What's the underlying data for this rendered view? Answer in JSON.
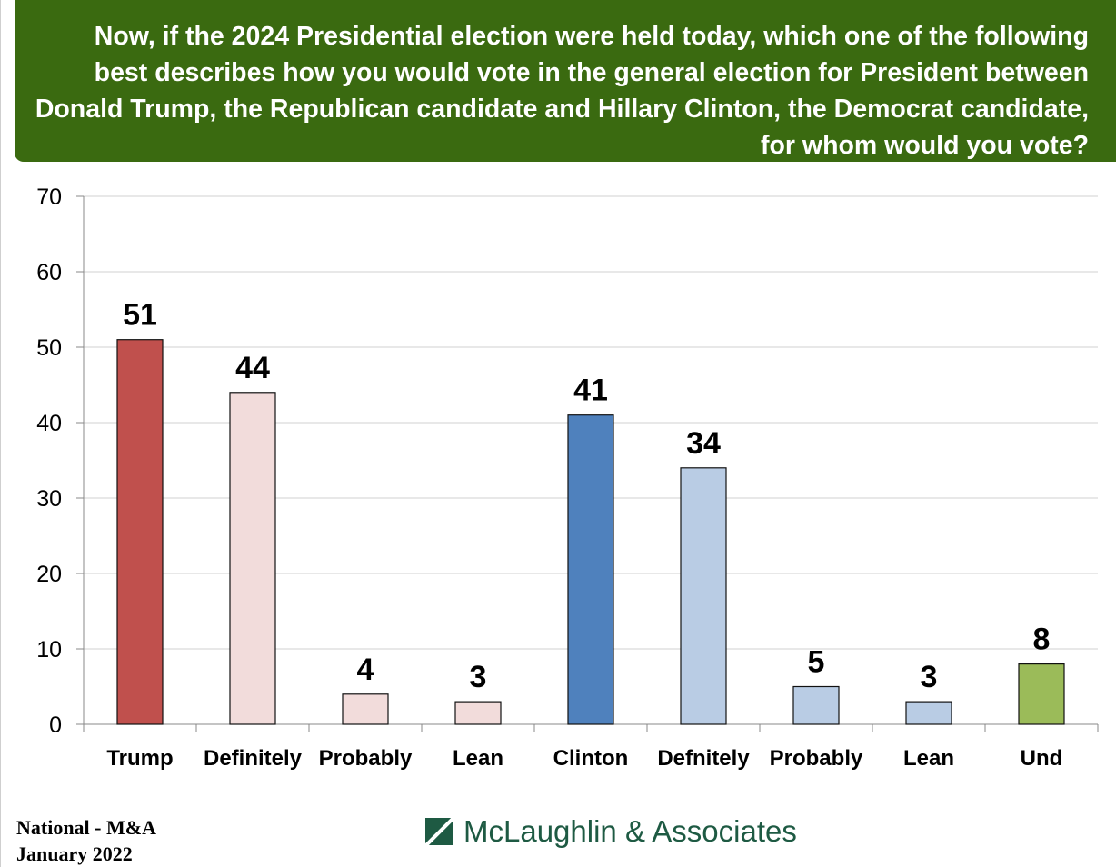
{
  "header": {
    "question": "Now, if the 2024 Presidential election were held today, which one of the following best describes how you would vote in the general election for President between Donald Trump, the Republican candidate and Hillary Clinton, the Democrat candidate, for whom would you vote?"
  },
  "chart_data": {
    "type": "bar",
    "title": "",
    "xlabel": "",
    "ylabel": "",
    "ylim": [
      0,
      70
    ],
    "yticks": [
      0,
      10,
      20,
      30,
      40,
      50,
      60,
      70
    ],
    "grid": true,
    "categories": [
      "Trump",
      "Definitely",
      "Probably",
      "Lean",
      "Clinton",
      "Defnitely",
      "Probably",
      "Lean",
      "Und"
    ],
    "values": [
      51,
      44,
      4,
      3,
      41,
      34,
      5,
      3,
      8
    ],
    "data_labels": [
      "51",
      "44",
      "4",
      "3",
      "41",
      "34",
      "5",
      "3",
      "8"
    ],
    "colors": [
      "#c0504d",
      "#f2dcdb",
      "#f2dcdb",
      "#f2dcdb",
      "#4f81bd",
      "#b9cce4",
      "#b9cce4",
      "#b9cce4",
      "#9bbb59"
    ]
  },
  "footer": {
    "line1": "National - M&A",
    "line2": "January 2022",
    "brand_name": "McLaughlin & Associates",
    "brand_icon": "diagonal-slash-logo-icon",
    "brand_color": "#1e5a43"
  }
}
